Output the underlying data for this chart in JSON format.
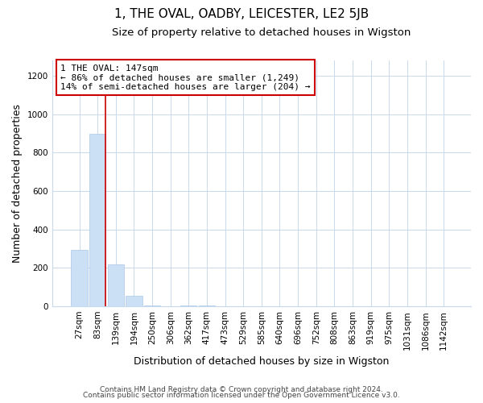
{
  "title": "1, THE OVAL, OADBY, LEICESTER, LE2 5JB",
  "subtitle": "Size of property relative to detached houses in Wigston",
  "bar_labels": [
    "27sqm",
    "83sqm",
    "139sqm",
    "194sqm",
    "250sqm",
    "306sqm",
    "362sqm",
    "417sqm",
    "473sqm",
    "529sqm",
    "585sqm",
    "640sqm",
    "696sqm",
    "752sqm",
    "808sqm",
    "863sqm",
    "919sqm",
    "975sqm",
    "1031sqm",
    "1086sqm",
    "1142sqm"
  ],
  "bar_values": [
    295,
    900,
    220,
    55,
    5,
    0,
    5,
    5,
    0,
    0,
    0,
    0,
    0,
    0,
    0,
    0,
    0,
    0,
    0,
    0,
    0
  ],
  "bar_color": "#cce0f5",
  "bar_edge_color": "#aac8e8",
  "highlight_line_color": "#cc0000",
  "highlight_line_bar_index": 1,
  "ylabel": "Number of detached properties",
  "xlabel": "Distribution of detached houses by size in Wigston",
  "ylim": [
    0,
    1280
  ],
  "yticks": [
    0,
    200,
    400,
    600,
    800,
    1000,
    1200
  ],
  "annotation_title": "1 THE OVAL: 147sqm",
  "annotation_line2": "← 86% of detached houses are smaller (1,249)",
  "annotation_line3": "14% of semi-detached houses are larger (204) →",
  "footer_line1": "Contains HM Land Registry data © Crown copyright and database right 2024.",
  "footer_line2": "Contains public sector information licensed under the Open Government Licence v3.0.",
  "bg_color": "#ffffff",
  "grid_color": "#c8d9ed",
  "title_fontsize": 11,
  "subtitle_fontsize": 9.5,
  "axis_label_fontsize": 9,
  "tick_fontsize": 7.5,
  "annotation_fontsize": 8,
  "footer_fontsize": 6.5
}
